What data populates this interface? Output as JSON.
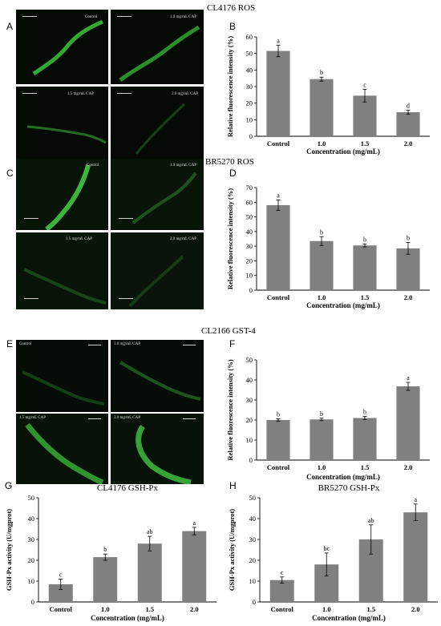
{
  "panels": {
    "A": "A",
    "B": "B",
    "C": "C",
    "D": "D",
    "E": "E",
    "F": "F",
    "G": "G",
    "H": "H"
  },
  "section_titles": {
    "cl4176_ros": "CL4176 ROS",
    "br5270_ros": "BR5270 ROS",
    "cl2166_gst4": "CL2166 GST-4"
  },
  "micrographs": {
    "A": [
      "Control",
      "1.0 mg/mL CAP",
      "1.5 mg/mL CAP",
      "2.0 mg/mL CAP"
    ],
    "C": [
      "Control",
      "1.0 mg/mL CAP",
      "1.5 mg/mL CAP",
      "2.0 mg/mL CAP"
    ],
    "E": [
      "Control",
      "1.0 mg/mL CAP",
      "1.5 mg/mL CAP",
      "2.0 mg/mL CAP"
    ]
  },
  "colors": {
    "bar": "#808080",
    "axis": "#000000",
    "fluorescence": "#3cc43c"
  },
  "chart_data": [
    {
      "panel": "B",
      "type": "bar",
      "title": "",
      "categories": [
        "Control",
        "1.0",
        "1.5",
        "2.0"
      ],
      "values": [
        51.5,
        34.5,
        24.5,
        14.5
      ],
      "errors": [
        3.5,
        1.2,
        3.8,
        1.2
      ],
      "letters": [
        "a",
        "b",
        "c",
        "d"
      ],
      "xlabel": "Concentration (mg/mL)",
      "ylabel": "Relative fluorescence intensity (%)",
      "ylim": [
        0,
        60
      ],
      "yticks": [
        0,
        10,
        20,
        30,
        40,
        50,
        60
      ]
    },
    {
      "panel": "D",
      "type": "bar",
      "title": "",
      "categories": [
        "Control",
        "1.0",
        "1.5",
        "2.0"
      ],
      "values": [
        58,
        33.5,
        30.5,
        28.5
      ],
      "errors": [
        3.5,
        3,
        1,
        4
      ],
      "letters": [
        "a",
        "b",
        "b",
        "b"
      ],
      "xlabel": "Concentration (mg/mL)",
      "ylabel": "Relative fluorescence intensity (%)",
      "ylim": [
        0,
        70
      ],
      "yticks": [
        0,
        10,
        20,
        30,
        40,
        50,
        60,
        70
      ]
    },
    {
      "panel": "F",
      "type": "bar",
      "title": "",
      "categories": [
        "Control",
        "1.0",
        "1.5",
        "2.0"
      ],
      "values": [
        20,
        20.3,
        21,
        36.8
      ],
      "errors": [
        0.6,
        0.6,
        0.8,
        2
      ],
      "letters": [
        "b",
        "b",
        "b",
        "a"
      ],
      "xlabel": "Concentration (mg/mL)",
      "ylabel": "Relative fluorescence intensity (%)",
      "ylim": [
        0,
        50
      ],
      "yticks": [
        0,
        10,
        20,
        30,
        40,
        50
      ]
    },
    {
      "panel": "G",
      "type": "bar",
      "title": "CL4176 GSH-Px",
      "categories": [
        "Control",
        "1.0",
        "1.5",
        "2.0"
      ],
      "values": [
        8.5,
        21.5,
        28,
        34
      ],
      "errors": [
        2.5,
        1.5,
        3.5,
        1.8
      ],
      "letters": [
        "c",
        "b",
        "ab",
        "a"
      ],
      "xlabel": "Concentration (mg/mL)",
      "ylabel": "GSH-Px activity (U/mgprot)",
      "ylim": [
        0,
        50
      ],
      "yticks": [
        0,
        10,
        20,
        30,
        40,
        50
      ]
    },
    {
      "panel": "H",
      "type": "bar",
      "title": "BR5270 GSH-Px",
      "categories": [
        "Control",
        "1.0",
        "1.5",
        "2.0"
      ],
      "values": [
        10.5,
        18,
        30,
        43
      ],
      "errors": [
        1.5,
        5.5,
        7,
        4
      ],
      "letters": [
        "c",
        "bc",
        "ab",
        "a"
      ],
      "xlabel": "Concentration (mg/mL)",
      "ylabel": "GSH-Px activity (U/mgprot)",
      "ylim": [
        0,
        50
      ],
      "yticks": [
        0,
        10,
        20,
        30,
        40,
        50
      ]
    }
  ]
}
